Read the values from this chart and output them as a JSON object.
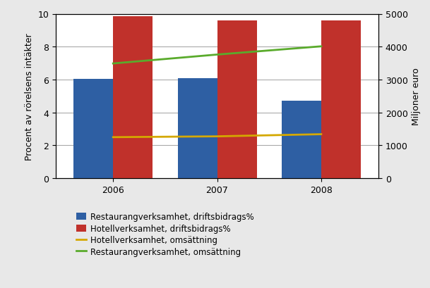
{
  "years": [
    2006,
    2007,
    2008
  ],
  "restaurang_drifts": [
    6.05,
    6.1,
    4.7
  ],
  "hotell_drifts": [
    9.85,
    9.6,
    9.6
  ],
  "hotell_omsattning": [
    1250,
    1275,
    1340
  ],
  "restaurang_omsattning": [
    3490,
    3760,
    4010
  ],
  "bar_width": 0.38,
  "bar_color_restaurang": "#2E5FA3",
  "bar_color_hotell": "#C0312B",
  "line_color_hotell": "#D4A800",
  "line_color_restaurang": "#5AAB2C",
  "ylim_left": [
    0,
    10
  ],
  "ylim_right": [
    0,
    5000
  ],
  "ylabel_left": "Procent av rörelsens intäkter",
  "ylabel_right": "Miljoner euro",
  "legend_labels": [
    "Restaurangverksamhet, driftsbidrags%",
    "Hotellverksamhet, driftsbidrags%",
    "Hotellverksamhet, omsättning",
    "Restaurangverksamhet, omsättning"
  ],
  "background_color": "#FFFFFF",
  "grid_color": "#AAAAAA",
  "tick_fontsize": 9,
  "label_fontsize": 9,
  "legend_fontsize": 8.5,
  "outer_bg": "#E8E8E8"
}
